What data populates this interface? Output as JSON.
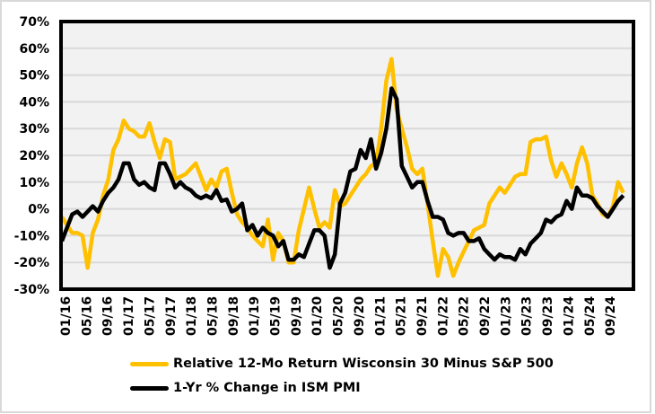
{
  "chart_data": {
    "type": "line",
    "title": "",
    "xlabel": "",
    "ylabel": "",
    "ylim": [
      -30,
      70
    ],
    "y_ticks": [
      "70%",
      "60%",
      "50%",
      "40%",
      "30%",
      "20%",
      "10%",
      "0%",
      "-10%",
      "-20%",
      "-30%"
    ],
    "x_tick_labels": [
      "01/16",
      "05/16",
      "09/16",
      "01/17",
      "05/17",
      "09/17",
      "01/18",
      "05/18",
      "09/18",
      "01/19",
      "05/19",
      "09/19",
      "01/20",
      "05/20",
      "09/20",
      "01/21",
      "05/21",
      "09/21",
      "01/22",
      "05/22",
      "09/22",
      "01/23",
      "05/23",
      "09/23",
      "01/24",
      "05/24",
      "09/24"
    ],
    "x_start": "01/16",
    "x_frequency": "monthly",
    "grid": true,
    "legend_position": "bottom",
    "series": [
      {
        "name": "Relative 12-Mo Return Wisconsin 30 Minus S&P 500",
        "color": "#ffc000",
        "values": [
          -3,
          -6,
          -9,
          -9,
          -10,
          -22,
          -9,
          -4,
          5,
          11,
          22,
          26,
          33,
          30,
          29,
          27,
          27,
          32,
          25,
          19,
          26,
          25,
          11,
          12,
          13,
          15,
          17,
          12,
          7,
          11,
          8,
          14,
          15,
          6,
          -2,
          -5,
          -7,
          -10,
          -12,
          -14,
          -4,
          -19,
          -9,
          -12,
          -20,
          -20,
          -8,
          0,
          8,
          0,
          -7,
          -5,
          -7,
          7,
          1,
          2,
          5,
          8,
          11,
          13,
          16,
          17,
          30,
          48,
          56,
          37,
          30,
          23,
          15,
          13,
          15,
          2,
          -12,
          -25,
          -15,
          -18,
          -25,
          -20,
          -16,
          -12,
          -8,
          -7,
          -6,
          2,
          5,
          8,
          6,
          9,
          12,
          13,
          13,
          25,
          26,
          26,
          27,
          18,
          12,
          17,
          13,
          8,
          17,
          23,
          17,
          5,
          2,
          -2,
          -3,
          1,
          10,
          6
        ]
      },
      {
        "name": "1-Yr % Change in ISM PMI",
        "color": "#000000",
        "values": [
          -12,
          -7,
          -2,
          -1,
          -3,
          -1,
          1,
          -1,
          3,
          6,
          8,
          11,
          17,
          17,
          11,
          9,
          10,
          8,
          7,
          17,
          17,
          13,
          8,
          10,
          8,
          7,
          5,
          4,
          5,
          4,
          7,
          3,
          3.5,
          -1,
          0,
          2,
          -8,
          -6,
          -10,
          -7,
          -9,
          -10,
          -14,
          -12,
          -19,
          -19,
          -17,
          -18,
          -13,
          -8,
          -8,
          -10,
          -22,
          -17,
          2,
          6,
          14,
          15,
          22,
          19,
          26,
          15,
          21,
          30,
          45,
          41,
          16,
          12,
          8,
          10,
          10,
          3,
          -3,
          -3,
          -4,
          -9,
          -10,
          -9,
          -9,
          -12,
          -12,
          -11,
          -15,
          -17,
          -19,
          -17,
          -18,
          -18,
          -19,
          -15,
          -17,
          -13,
          -11,
          -9,
          -4,
          -5,
          -3,
          -2,
          3,
          0,
          8,
          5,
          5,
          4,
          1,
          -1,
          -3,
          0,
          3,
          5
        ]
      }
    ]
  }
}
